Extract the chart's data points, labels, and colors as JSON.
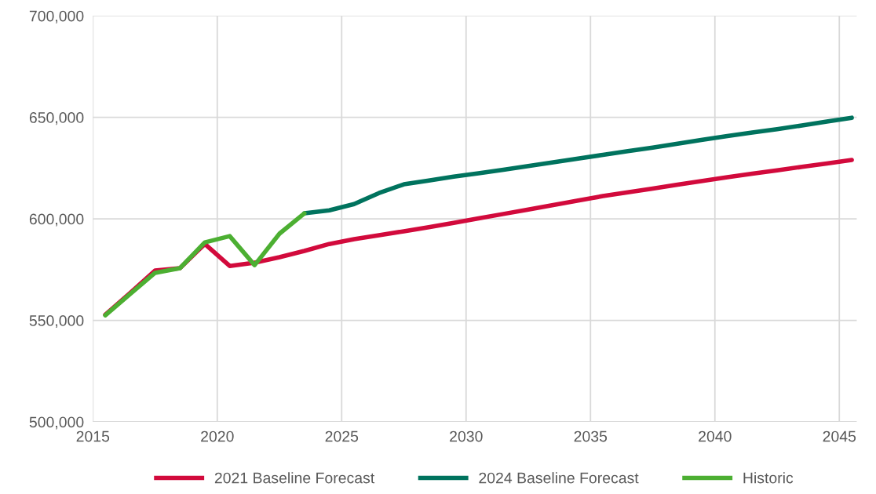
{
  "chart_data": {
    "type": "line",
    "xlim": [
      2015,
      2045.7
    ],
    "xticks": [
      2015,
      2020,
      2025,
      2030,
      2035,
      2040,
      2045
    ],
    "ylim": [
      500000,
      700000
    ],
    "yticks": [
      {
        "value": 500000,
        "label": "500,000"
      },
      {
        "value": 550000,
        "label": "550,000"
      },
      {
        "value": 600000,
        "label": "600,000"
      },
      {
        "value": 650000,
        "label": "650,000"
      },
      {
        "value": 700000,
        "label": "700,000"
      }
    ],
    "grid": true,
    "legend": "bottom",
    "marker": "none",
    "line_style": "solid",
    "series": [
      {
        "name": "2021 Baseline Forecast",
        "color": "#d20a3c",
        "x": [
          2015.5,
          2016.5,
          2017.5,
          2018.5,
          2019.5,
          2020.5,
          2021.5,
          2022.5,
          2023.5,
          2024.5,
          2025.5,
          2026.5,
          2027.5,
          2028.5,
          2029.5,
          2030.5,
          2031.5,
          2032.5,
          2033.5,
          2034.5,
          2035.5,
          2036.5,
          2037.5,
          2038.5,
          2039.5,
          2040.5,
          2041.5,
          2042.5,
          2043.5,
          2044.5,
          2045.5
        ],
        "values": [
          552800,
          563500,
          574500,
          575700,
          587600,
          576800,
          578400,
          581100,
          584200,
          587600,
          590000,
          591900,
          593900,
          595900,
          598000,
          600200,
          602400,
          604600,
          606800,
          609000,
          611200,
          613100,
          614900,
          616800,
          618700,
          620500,
          622200,
          623900,
          625600,
          627300,
          629000
        ]
      },
      {
        "name": "2024 Baseline Forecast",
        "color": "#00735e",
        "x": [
          2023.5,
          2024.5,
          2025.5,
          2026.5,
          2027.5,
          2028.5,
          2029.5,
          2030.5,
          2031.5,
          2032.5,
          2033.5,
          2034.5,
          2035.5,
          2036.5,
          2037.5,
          2038.5,
          2039.5,
          2040.5,
          2041.5,
          2042.5,
          2043.5,
          2044.5,
          2045.5
        ],
        "values": [
          602700,
          604200,
          607300,
          612700,
          617000,
          618900,
          620800,
          622400,
          624200,
          626000,
          627800,
          629700,
          631500,
          633300,
          635100,
          637000,
          638900,
          640800,
          642500,
          644200,
          646000,
          647900,
          649800
        ]
      },
      {
        "name": "Historic",
        "color": "#4caf32",
        "x": [
          2015.5,
          2016.5,
          2017.5,
          2018.5,
          2019.5,
          2020.5,
          2021.5,
          2022.5,
          2023.5
        ],
        "values": [
          552500,
          563000,
          573400,
          575700,
          588400,
          591500,
          577200,
          592700,
          602700
        ]
      }
    ]
  }
}
